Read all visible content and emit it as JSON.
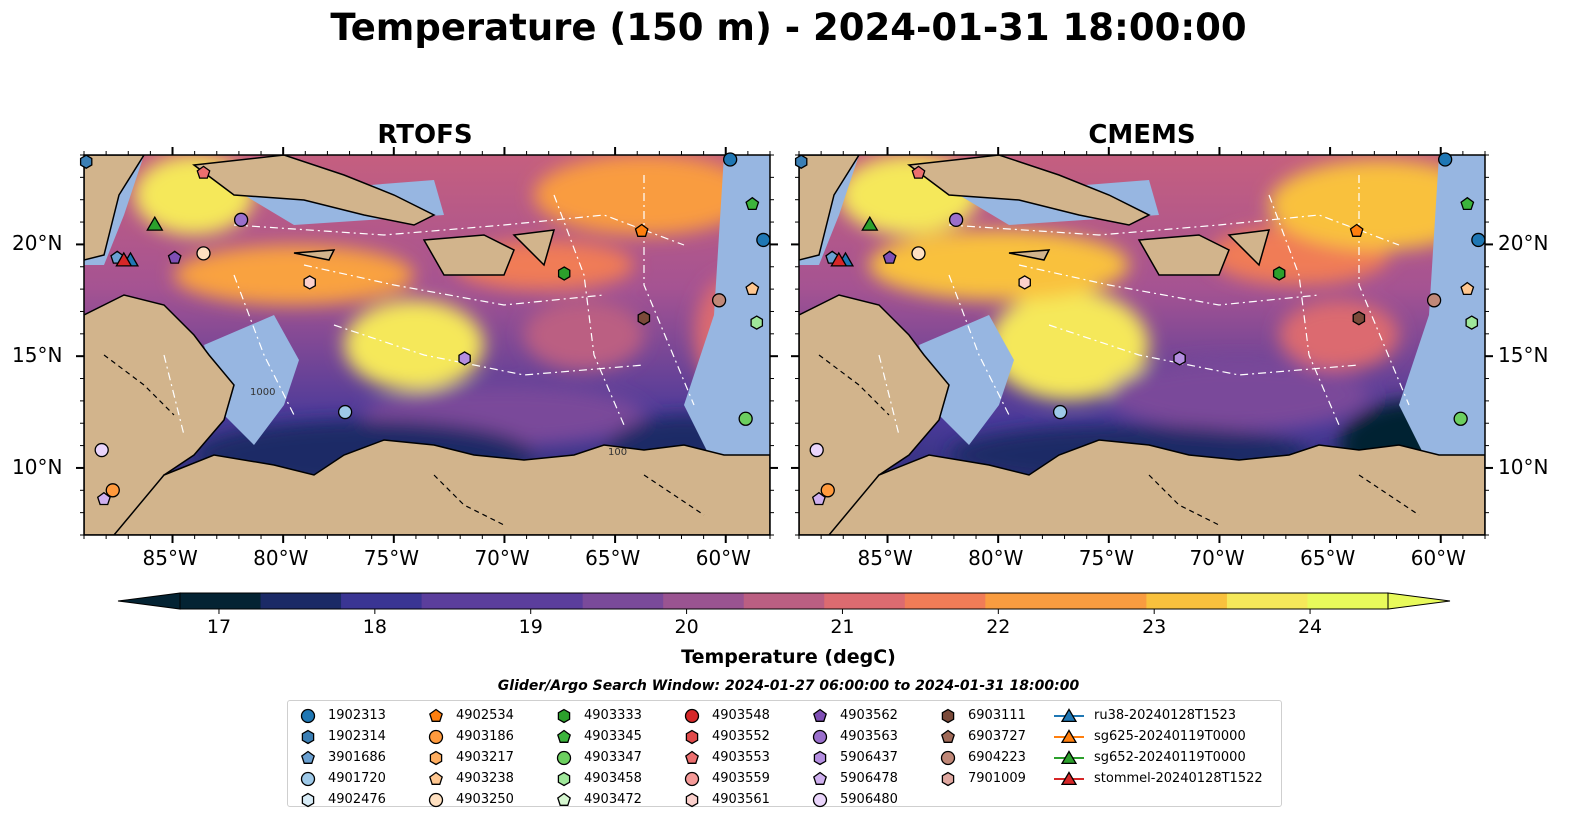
{
  "title": "Temperature (150 m) - 2024-01-31 18:00:00",
  "panels": [
    {
      "title": "RTOFS"
    },
    {
      "title": "CMEMS"
    }
  ],
  "map": {
    "lon_range": [
      -89,
      -58
    ],
    "lat_range": [
      7,
      24
    ],
    "lat_ticks": [
      "20°N",
      "15°N",
      "10°N"
    ],
    "lon_ticks": [
      "85°W",
      "80°W",
      "75°W",
      "70°W",
      "65°W",
      "60°W"
    ],
    "land_color": "#d2b48c",
    "shelf_color": "#97b6e1",
    "contour_labels": [
      "1000",
      "100"
    ]
  },
  "colorbar": {
    "ticks": [
      "17",
      "18",
      "19",
      "20",
      "21",
      "22",
      "23",
      "24"
    ],
    "label": "Temperature (degC)",
    "range": [
      16.75,
      24.5
    ],
    "colormap": "thermal",
    "colors": [
      "#042333",
      "#1b2a66",
      "#3a3593",
      "#5b3e9c",
      "#7a4a9a",
      "#9a5491",
      "#bb5f82",
      "#dc6b70",
      "#f07c57",
      "#f99c40",
      "#f9c13d",
      "#f5e85a",
      "#e8fa5b"
    ]
  },
  "legend": {
    "title": "Glider/Argo Search Window: 2024-01-27 06:00:00 to 2024-01-31 18:00:00",
    "columns": [
      [
        {
          "label": "1902313",
          "marker": "circle",
          "color": "#1f77b4"
        },
        {
          "label": "1902314",
          "marker": "hexagon",
          "color": "#3b7fb5"
        },
        {
          "label": "3901686",
          "marker": "pentagon",
          "color": "#6aa0d1"
        },
        {
          "label": "4901720",
          "marker": "circle",
          "color": "#9ec9e8"
        },
        {
          "label": "4902476",
          "marker": "hexagon",
          "color": "#d8ecf7"
        }
      ],
      [
        {
          "label": "4902534",
          "marker": "pentagon",
          "color": "#ff7f0e"
        },
        {
          "label": "4903186",
          "marker": "circle",
          "color": "#ff9a3d"
        },
        {
          "label": "4903217",
          "marker": "hexagon",
          "color": "#ffae60"
        },
        {
          "label": "4903238",
          "marker": "pentagon",
          "color": "#ffc790"
        },
        {
          "label": "4903250",
          "marker": "circle",
          "color": "#ffe0c0"
        }
      ],
      [
        {
          "label": "4903333",
          "marker": "hexagon",
          "color": "#2ca02c"
        },
        {
          "label": "4903345",
          "marker": "pentagon",
          "color": "#3cb43c"
        },
        {
          "label": "4903347",
          "marker": "circle",
          "color": "#6ccf5f"
        },
        {
          "label": "4903458",
          "marker": "hexagon",
          "color": "#9fe79a"
        },
        {
          "label": "4903472",
          "marker": "pentagon",
          "color": "#d6f7d0"
        }
      ],
      [
        {
          "label": "4903548",
          "marker": "circle",
          "color": "#d62728"
        },
        {
          "label": "4903552",
          "marker": "hexagon",
          "color": "#e04a4a"
        },
        {
          "label": "4903553",
          "marker": "pentagon",
          "color": "#ec6f6f"
        },
        {
          "label": "4903559",
          "marker": "circle",
          "color": "#f59a98"
        },
        {
          "label": "4903561",
          "marker": "hexagon",
          "color": "#fbd0cc"
        }
      ],
      [
        {
          "label": "4903562",
          "marker": "pentagon",
          "color": "#7f4fb5"
        },
        {
          "label": "4903563",
          "marker": "circle",
          "color": "#9a6fcc"
        },
        {
          "label": "5906437",
          "marker": "hexagon",
          "color": "#b48ee0"
        },
        {
          "label": "5906478",
          "marker": "pentagon",
          "color": "#cfb0ef"
        },
        {
          "label": "5906480",
          "marker": "circle",
          "color": "#ead5fb"
        }
      ],
      [
        {
          "label": "6903111",
          "marker": "hexagon",
          "color": "#7b4a3a"
        },
        {
          "label": "6903727",
          "marker": "pentagon",
          "color": "#a06a58"
        },
        {
          "label": "6904223",
          "marker": "circle",
          "color": "#c08878"
        },
        {
          "label": "7901009",
          "marker": "hexagon",
          "color": "#e0a8a0"
        }
      ],
      [
        {
          "label": "ru38-20240128T1523",
          "marker": "triangle-line",
          "color": "#1f77b4"
        },
        {
          "label": "sg625-20240119T0000",
          "marker": "triangle-line",
          "color": "#ff7f0e"
        },
        {
          "label": "sg652-20240119T0000",
          "marker": "triangle-line",
          "color": "#2ca02c"
        },
        {
          "label": "stommel-20240128T1522",
          "marker": "triangle-line",
          "color": "#d62728"
        }
      ]
    ]
  },
  "floats": [
    {
      "id": "1902313",
      "lon": -59.8,
      "lat": 23.8
    },
    {
      "id": "1902313",
      "lon": -58.3,
      "lat": 20.2
    },
    {
      "id": "1902314",
      "lon": -88.9,
      "lat": 23.7
    },
    {
      "id": "3901686",
      "lon": -87.5,
      "lat": 19.4
    },
    {
      "id": "4901720",
      "lon": -77.2,
      "lat": 12.5
    },
    {
      "id": "4902534",
      "lon": -63.8,
      "lat": 20.6
    },
    {
      "id": "4903186",
      "lon": -87.7,
      "lat": 9.0
    },
    {
      "id": "4903238",
      "lon": -58.8,
      "lat": 18.0
    },
    {
      "id": "4903250",
      "lon": -83.6,
      "lat": 19.6
    },
    {
      "id": "4903345",
      "lon": -58.8,
      "lat": 21.8
    },
    {
      "id": "4903333",
      "lon": -67.3,
      "lat": 18.7
    },
    {
      "id": "4903347",
      "lon": -59.1,
      "lat": 12.2
    },
    {
      "id": "4903458",
      "lon": -58.6,
      "lat": 16.5
    },
    {
      "id": "4903553",
      "lon": -83.6,
      "lat": 23.2
    },
    {
      "id": "4903561",
      "lon": -78.8,
      "lat": 18.3
    },
    {
      "id": "4903562",
      "lon": -84.9,
      "lat": 19.4
    },
    {
      "id": "4903563",
      "lon": -81.9,
      "lat": 21.1
    },
    {
      "id": "5906478",
      "lon": -88.1,
      "lat": 8.6
    },
    {
      "id": "5906480",
      "lon": -88.2,
      "lat": 10.8
    },
    {
      "id": "5906437",
      "lon": -71.8,
      "lat": 14.9
    },
    {
      "id": "6903111",
      "lon": -63.7,
      "lat": 16.7
    },
    {
      "id": "6904223",
      "lon": -60.3,
      "lat": 17.5
    }
  ],
  "gliders": [
    {
      "id": "ru38-20240128T1523",
      "lon": -86.9,
      "lat": 19.3
    },
    {
      "id": "sg652-20240119T0000",
      "lon": -85.8,
      "lat": 20.9
    },
    {
      "id": "stommel-20240128T1522",
      "lon": -87.2,
      "lat": 19.3
    }
  ]
}
